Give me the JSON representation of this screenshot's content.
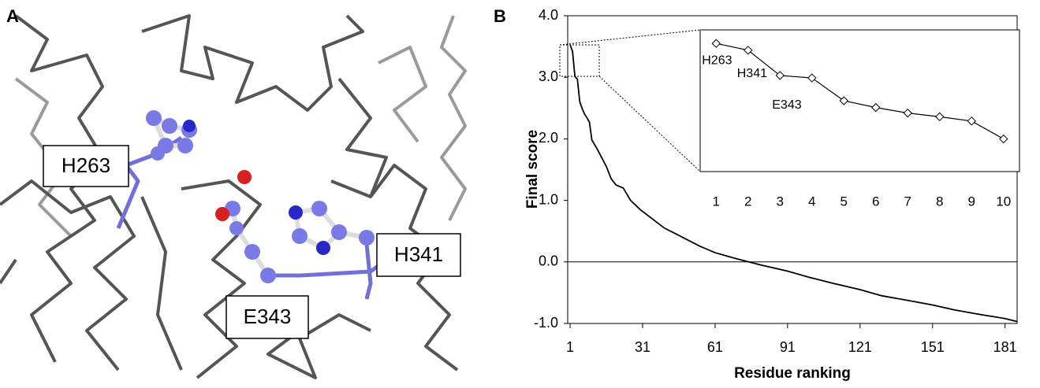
{
  "panels": {
    "a": {
      "label": "A",
      "residue_labels": [
        "H263",
        "H341",
        "E343"
      ]
    },
    "b": {
      "label": "B"
    }
  },
  "chart_data": [
    {
      "type": "line",
      "xlabel": "Residue ranking",
      "ylabel": "Final score",
      "x": [
        1,
        2,
        3,
        4,
        5,
        6,
        7,
        8,
        9,
        10,
        12,
        14,
        16,
        18,
        20,
        23,
        26,
        30,
        35,
        40,
        45,
        50,
        55,
        61,
        70,
        80,
        91,
        100,
        110,
        121,
        130,
        140,
        151,
        160,
        170,
        181,
        186
      ],
      "values": [
        3.53,
        3.42,
        3.01,
        2.97,
        2.6,
        2.49,
        2.4,
        2.34,
        2.27,
        1.98,
        1.85,
        1.7,
        1.55,
        1.35,
        1.25,
        1.2,
        1.0,
        0.85,
        0.7,
        0.55,
        0.45,
        0.35,
        0.25,
        0.15,
        0.05,
        -0.05,
        -0.15,
        -0.25,
        -0.35,
        -0.45,
        -0.55,
        -0.62,
        -0.7,
        -0.78,
        -0.85,
        -0.92,
        -0.97
      ],
      "color": "#000000",
      "xlim": [
        0,
        186
      ],
      "xticks": [
        1,
        31,
        61,
        91,
        121,
        151,
        181
      ],
      "ylim": [
        -1,
        4
      ],
      "yticks": [
        {
          "value": -1,
          "label": "-1.0"
        },
        {
          "value": 0,
          "label": "0.0"
        },
        {
          "value": 1,
          "label": "1.0"
        },
        {
          "value": 2,
          "label": "2.0"
        },
        {
          "value": 3,
          "label": "3.0"
        },
        {
          "value": 4,
          "label": "4.0"
        }
      ]
    },
    {
      "type": "line",
      "x": [
        1,
        2,
        3,
        4,
        5,
        6,
        7,
        8,
        9,
        10
      ],
      "values": [
        3.53,
        3.42,
        3.01,
        2.97,
        2.6,
        2.49,
        2.4,
        2.34,
        2.27,
        1.98
      ],
      "color": "#000000",
      "marker": "diamond",
      "annotations": [
        "H263",
        "H341",
        "E343"
      ],
      "xlim": [
        0.5,
        10.5
      ],
      "xticks": [
        1,
        2,
        3,
        4,
        5,
        6,
        7,
        8,
        9,
        10
      ],
      "ylim": [
        1.45,
        3.75
      ]
    }
  ]
}
